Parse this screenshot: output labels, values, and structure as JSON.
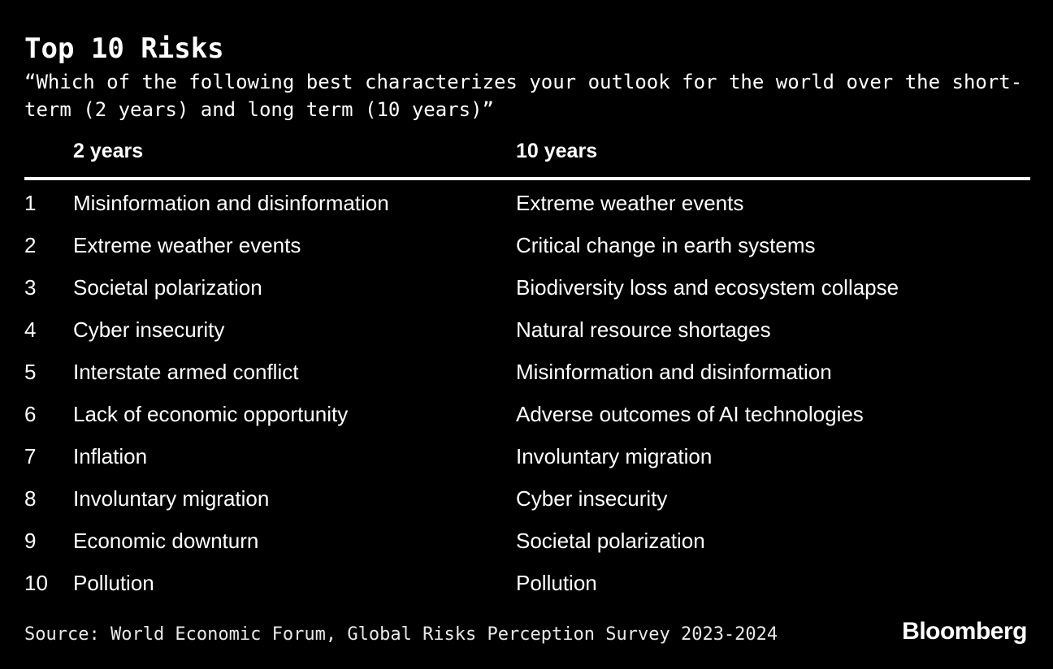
{
  "page": {
    "background_color": "#000000",
    "text_color": "#ffffff",
    "rule_color": "#ffffff"
  },
  "chart_data": {
    "type": "table",
    "title": "Top 10 Risks",
    "subtitle": "“Which of the following best characterizes your outlook for the world over the short-term (2 years) and long term (10 years)”",
    "columns": [
      "2 years",
      "10 years"
    ],
    "rows": [
      {
        "rank": "1",
        "two_years": "Misinformation and disinformation",
        "ten_years": "Extreme weather events"
      },
      {
        "rank": "2",
        "two_years": "Extreme weather events",
        "ten_years": "Critical change in earth systems"
      },
      {
        "rank": "3",
        "two_years": "Societal polarization",
        "ten_years": "Biodiversity loss and ecosystem collapse"
      },
      {
        "rank": "4",
        "two_years": "Cyber insecurity",
        "ten_years": "Natural resource shortages"
      },
      {
        "rank": "5",
        "two_years": "Interstate armed conflict",
        "ten_years": "Misinformation and disinformation"
      },
      {
        "rank": "6",
        "two_years": "Lack of economic opportunity",
        "ten_years": "Adverse outcomes of AI technologies"
      },
      {
        "rank": "7",
        "two_years": "Inflation",
        "ten_years": "Involuntary migration"
      },
      {
        "rank": "8",
        "two_years": "Involuntary migration",
        "ten_years": "Cyber insecurity"
      },
      {
        "rank": "9",
        "two_years": "Economic downturn",
        "ten_years": "Societal polarization"
      },
      {
        "rank": "10",
        "two_years": "Pollution",
        "ten_years": "Pollution"
      }
    ],
    "source": "Source: World Economic Forum, Global Risks Perception Survey 2023-2024",
    "legend_position": "none",
    "grid": false
  },
  "footer": {
    "brand": "Bloomberg"
  }
}
